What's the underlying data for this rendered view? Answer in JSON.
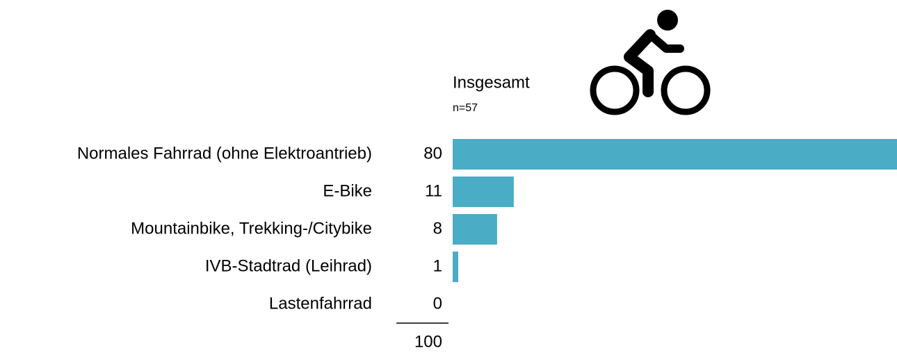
{
  "chart_data": {
    "type": "bar",
    "orientation": "horizontal",
    "title": "Insgesamt",
    "subtitle": "n=57",
    "categories": [
      "Normales Fahrrad (ohne Elektroantrieb)",
      "E-Bike",
      "Mountainbike, Trekking-/Citybike",
      "IVB-Stadtrad (Leihrad)",
      "Lastenfahrrad"
    ],
    "values": [
      80,
      11,
      8,
      1,
      0
    ],
    "color": "#4bacc6",
    "total": 100
  }
}
